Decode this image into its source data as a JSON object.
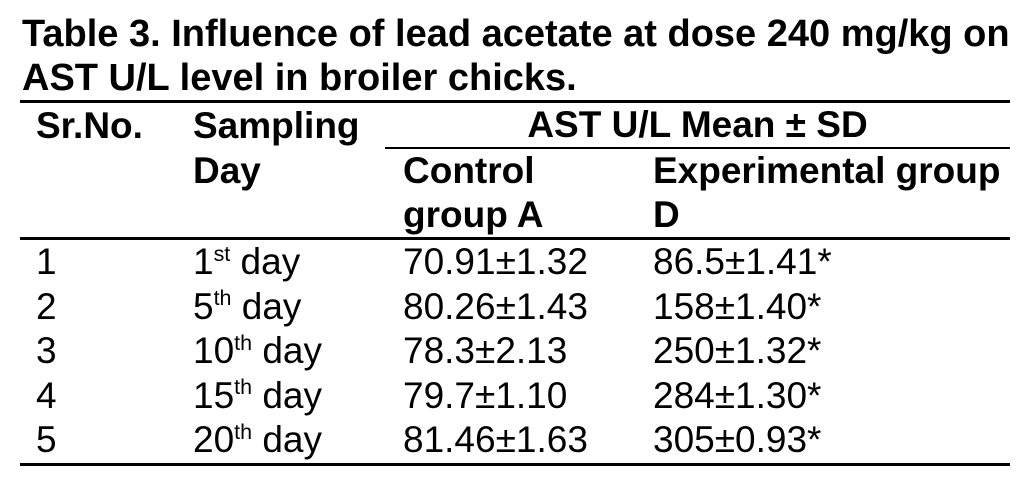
{
  "title": "Table 3. Influence of lead acetate at dose 240 mg/kg on AST U/L level in broiler chicks.",
  "table": {
    "headers": {
      "sr_no": "Sr.No.",
      "sampling_day": "Sampling Day",
      "group_header": "AST U/L Mean ± SD",
      "control": "Control group A",
      "experimental": "Experimental group D"
    },
    "rows": [
      {
        "sr": "1",
        "day_num": "1",
        "day_ord": "st",
        "day_word": "day",
        "control": "70.91±1.32",
        "experimental": "86.5±1.41*"
      },
      {
        "sr": "2",
        "day_num": "5",
        "day_ord": "th",
        "day_word": "day",
        "control": "80.26±1.43",
        "experimental": "158±1.40*"
      },
      {
        "sr": "3",
        "day_num": "10",
        "day_ord": "th",
        "day_word": "day",
        "control": "78.3±2.13",
        "experimental": "250±1.32*"
      },
      {
        "sr": "4",
        "day_num": "15",
        "day_ord": "th",
        "day_word": "day",
        "control": "79.7±1.10",
        "experimental": "284±1.30*"
      },
      {
        "sr": "5",
        "day_num": "20",
        "day_ord": "th",
        "day_word": "day",
        "control": "81.46±1.63",
        "experimental": "305±0.93*"
      }
    ]
  }
}
